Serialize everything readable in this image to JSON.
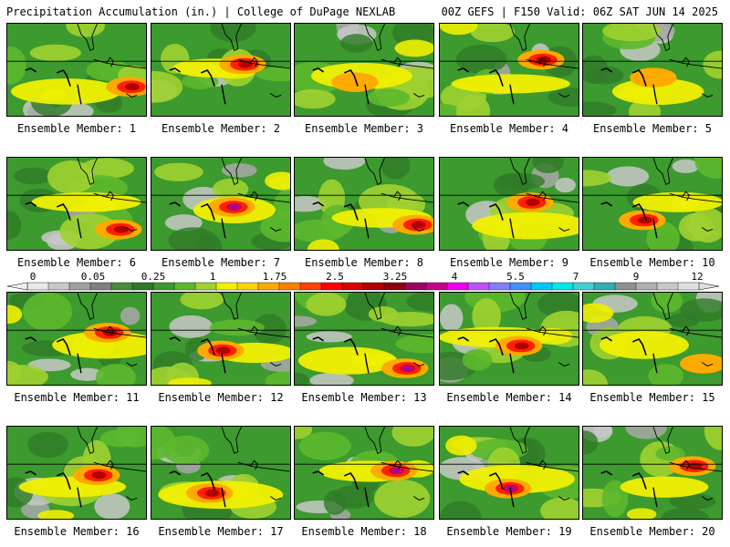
{
  "header": {
    "left": "Precipitation Accumulation (in.) | College of DuPage NEXLAB",
    "right": "00Z GEFS | F150 Valid: 06Z SAT JUN 14 2025"
  },
  "panel_label_prefix": "Ensemble Member: ",
  "members": [
    {
      "id": "1",
      "peak": "high"
    },
    {
      "id": "2",
      "peak": "high"
    },
    {
      "id": "3",
      "peak": "moderate"
    },
    {
      "id": "4",
      "peak": "high"
    },
    {
      "id": "5",
      "peak": "moderate"
    },
    {
      "id": "6",
      "peak": "high"
    },
    {
      "id": "7",
      "peak": "very high"
    },
    {
      "id": "8",
      "peak": "high"
    },
    {
      "id": "9",
      "peak": "high"
    },
    {
      "id": "10",
      "peak": "high"
    },
    {
      "id": "11",
      "peak": "high"
    },
    {
      "id": "12",
      "peak": "high"
    },
    {
      "id": "13",
      "peak": "very high"
    },
    {
      "id": "14",
      "peak": "high"
    },
    {
      "id": "15",
      "peak": "moderate"
    },
    {
      "id": "16",
      "peak": "high"
    },
    {
      "id": "17",
      "peak": "high"
    },
    {
      "id": "18",
      "peak": "very high"
    },
    {
      "id": "19",
      "peak": "very high"
    },
    {
      "id": "20",
      "peak": "high"
    }
  ],
  "colorbar": {
    "labels": [
      "0",
      "0.05",
      "0.25",
      "1",
      "1.75",
      "2.5",
      "3.25",
      "4",
      "5.5",
      "7",
      "9",
      "12"
    ],
    "colors": [
      "#e8e8e8",
      "#c8c8c8",
      "#a0a0a0",
      "#808080",
      "#4a8a3a",
      "#2f7a28",
      "#3c9a2e",
      "#5cb82c",
      "#9fd230",
      "#f0f000",
      "#ffd200",
      "#ffaa00",
      "#ff8000",
      "#ff4000",
      "#ff0000",
      "#d80000",
      "#b00000",
      "#8c0010",
      "#a00060",
      "#c8008c",
      "#f000f0",
      "#c050ff",
      "#8080ff",
      "#4090ff",
      "#00c8ff",
      "#00e8e8",
      "#40d0d0",
      "#30b0b0",
      "#909090",
      "#b0b0b0",
      "#c8c8c8",
      "#e0e0e0"
    ]
  }
}
